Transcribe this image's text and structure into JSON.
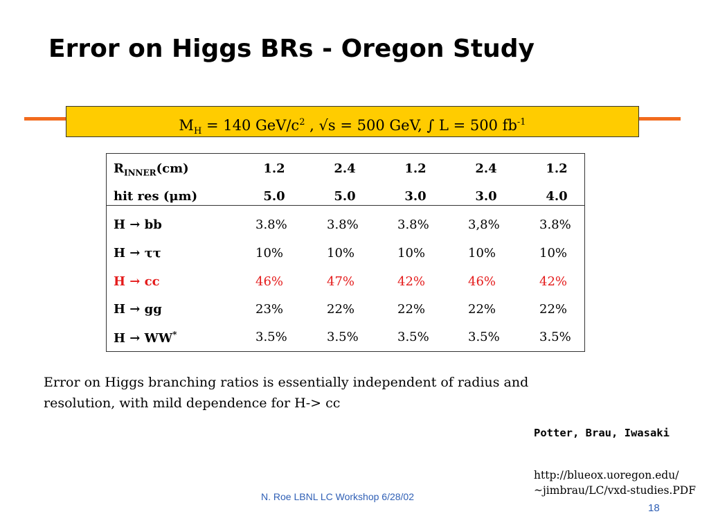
{
  "slide": {
    "title": "Error on Higgs BRs - Oregon Study",
    "accent_color": "#f26b1d",
    "banner_color": "#ffcc00"
  },
  "banner": {
    "mh_main": "M",
    "mh_sub": "H",
    "mh_value": " = 140 GeV/c",
    "mh_sup": "2",
    "sqrt_s": " ,     √s = 500 GeV,   ∫ L = 500 fb",
    "lumi_sup": "-1"
  },
  "table": {
    "header_rows": [
      {
        "label_main": "R",
        "label_sub": "INNER",
        "label_tail": "(cm)",
        "values": [
          "1.2",
          "2.4",
          "1.2",
          "2.4",
          "1.2"
        ]
      },
      {
        "label_main": "hit res (μm)",
        "values": [
          "5.0",
          "5.0",
          "3.0",
          "3.0",
          "4.0"
        ]
      }
    ],
    "data_rows": [
      {
        "label": "H → bb",
        "values": [
          "3.8%",
          "3.8%",
          "3.8%",
          "3,8%",
          "3.8%"
        ],
        "highlight": false
      },
      {
        "label": "H → ττ",
        "values": [
          "10%",
          "10%",
          "10%",
          "10%",
          "10%"
        ],
        "highlight": false
      },
      {
        "label": "H → cc",
        "values": [
          "46%",
          "47%",
          "42%",
          "46%",
          "42%"
        ],
        "highlight": true,
        "color": "#e41b1b"
      },
      {
        "label": "H → gg",
        "values": [
          "23%",
          "22%",
          "22%",
          "22%",
          "22%"
        ],
        "highlight": false
      },
      {
        "label_main": "H → WW",
        "label_sup": "*",
        "values": [
          "3.5%",
          "3.5%",
          "3.5%",
          "3.5%",
          "3.5%"
        ],
        "highlight": false
      }
    ]
  },
  "note": "Error on Higgs branching ratios is essentially independent of radius and resolution, with mild dependence for H-> cc",
  "authors": "Potter, Brau, Iwasaki",
  "url_line1": "http://blueox.uoregon.edu/",
  "url_line2": "~jimbrau/LC/vxd-studies.PDF",
  "footer": "N. Roe LBNL LC Workshop 6/28/02",
  "page_number": "18"
}
